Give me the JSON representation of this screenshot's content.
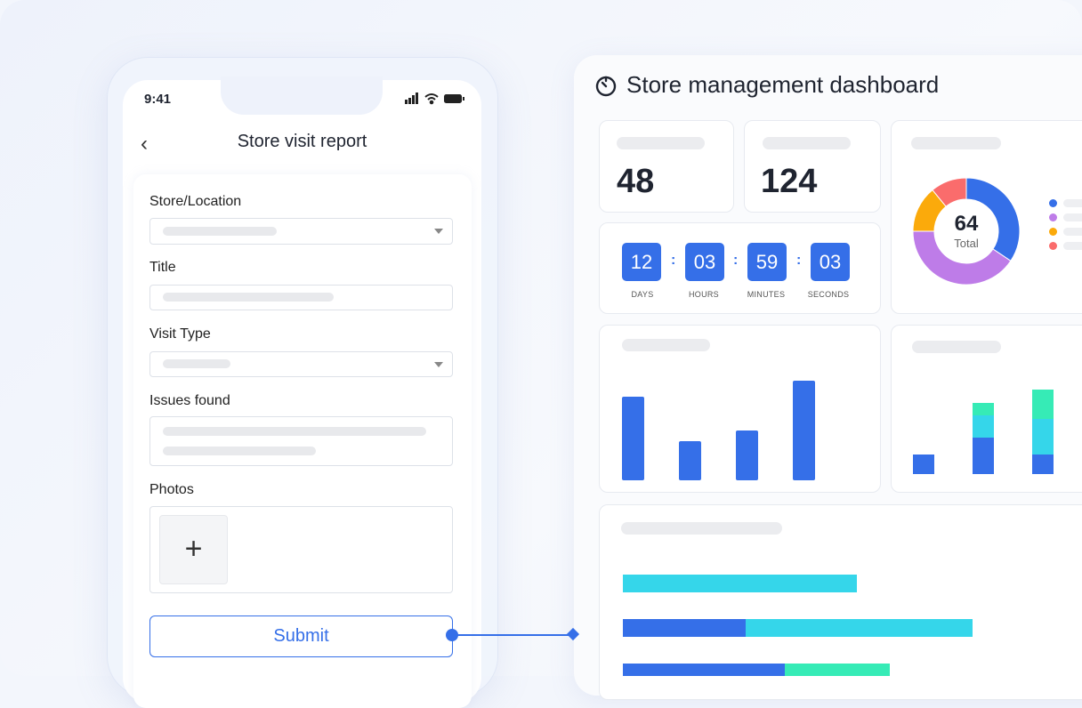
{
  "phone": {
    "status_time": "9:41",
    "header_title": "Store visit report",
    "fields": {
      "store_location": "Store/Location",
      "title": "Title",
      "visit_type": "Visit Type",
      "issues_found": "Issues found",
      "photos": "Photos"
    },
    "add_photo_glyph": "+",
    "submit_label": "Submit"
  },
  "dashboard": {
    "title": "Store management dashboard",
    "icon": "timer-icon",
    "stat_1": "48",
    "stat_2": "124",
    "countdown": {
      "days": "12",
      "hours": "03",
      "minutes": "59",
      "seconds": "03",
      "labels": {
        "days": "DAYS",
        "hours": "HOURS",
        "minutes": "MINUTES",
        "seconds": "SECONDS"
      },
      "separator": ":"
    },
    "donut": {
      "total": "64",
      "total_label": "Total"
    }
  },
  "colors": {
    "accent": "#356fe8",
    "cyan": "#35d6ea",
    "green": "#36ebb6",
    "purple": "#be7ce8",
    "orange": "#fbaa0b",
    "red": "#fa6c6c"
  },
  "chart_data": [
    {
      "type": "pie",
      "variant": "donut",
      "values": [
        22,
        26,
        9,
        7
      ],
      "colors": [
        "#356fe8",
        "#be7ce8",
        "#fbaa0b",
        "#fa6c6c"
      ]
    },
    {
      "type": "bar",
      "values": [
        94,
        44,
        56,
        112
      ]
    },
    {
      "type": "bar",
      "stacked": true,
      "series": [
        {
          "values": [
            22,
            41,
            22
          ],
          "color": "#356fe8"
        },
        {
          "values": [
            0,
            25,
            40
          ],
          "color": "#35d6ea"
        },
        {
          "values": [
            0,
            14,
            33
          ],
          "color": "#36ebb6"
        }
      ]
    },
    {
      "type": "bar",
      "orientation": "horizontal",
      "stacked": true,
      "series": [
        {
          "values": [
            0,
            138,
            182
          ],
          "color": "#356fe8"
        },
        {
          "values": [
            263,
            255,
            0
          ],
          "color": "#35d6ea"
        },
        {
          "values": [
            0,
            0,
            118
          ],
          "color": "#36ebb6"
        }
      ]
    }
  ]
}
